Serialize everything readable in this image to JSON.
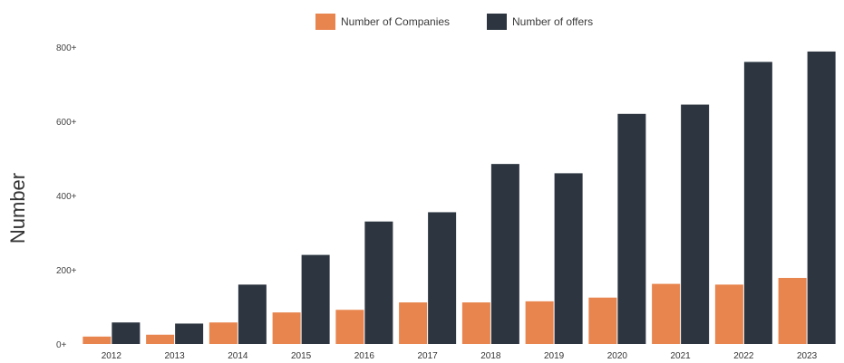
{
  "chart_data": {
    "type": "bar",
    "title": "",
    "xlabel": "",
    "ylabel": "Number",
    "ylim": [
      0,
      800
    ],
    "yticks": [
      0,
      200,
      400,
      600,
      800
    ],
    "ytick_suffix": "+",
    "grid": false,
    "legend_position": "top-center",
    "categories": [
      "2012",
      "2013",
      "2014",
      "2015",
      "2016",
      "2017",
      "2018",
      "2019",
      "2020",
      "2021",
      "2022",
      "2023"
    ],
    "series": [
      {
        "name": "Number of Companies",
        "color": "#e8844d",
        "values": [
          20,
          25,
          58,
          85,
          92,
          112,
          112,
          115,
          125,
          162,
          160,
          178
        ]
      },
      {
        "name": "Number of offers",
        "color": "#2c3540",
        "values": [
          58,
          55,
          160,
          240,
          330,
          355,
          485,
          460,
          620,
          645,
          760,
          788
        ]
      }
    ]
  }
}
